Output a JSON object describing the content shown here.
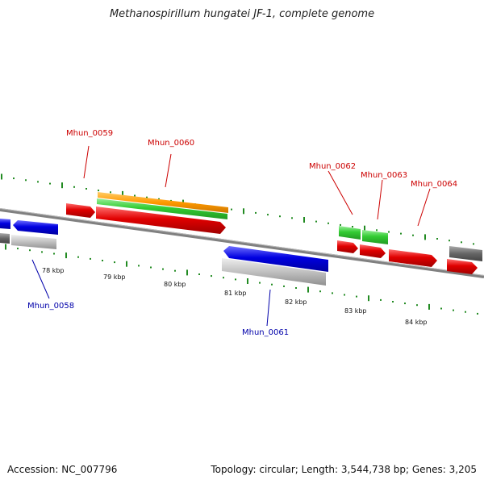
{
  "title": "Methanospirillum hungatei JF-1, complete genome",
  "footer": {
    "accession": "Accession: NC_007796",
    "summary": "Topology: circular; Length: 3,544,738 bp; Genes: 3,205"
  },
  "scale_labels": [
    "78 kbp",
    "79 kbp",
    "80 kbp",
    "81 kbp",
    "82 kbp",
    "83 kbp",
    "84 kbp"
  ],
  "genes_forward": [
    "Mhun_0059",
    "Mhun_0060",
    "Mhun_0062",
    "Mhun_0063",
    "Mhun_0064"
  ],
  "genes_reverse": [
    "Mhun_0058",
    "Mhun_0061"
  ],
  "colors": {
    "forward_cds": "#e00000",
    "reverse_cds": "#0000e0",
    "rna": "#33cc33",
    "gene_orange": "#ff9900",
    "gene_gray": "#c0c0c0",
    "gene_dark": "#666666",
    "backbone": "#808080",
    "ticks": "#228B22"
  }
}
